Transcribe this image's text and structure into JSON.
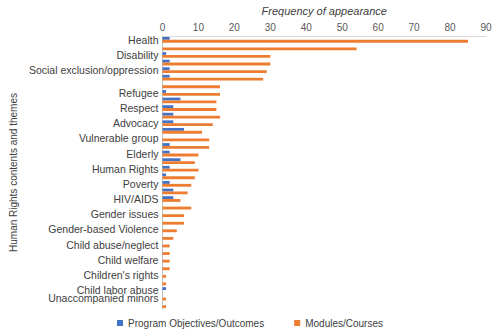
{
  "chart_data": {
    "type": "bar",
    "orientation": "horizontal",
    "x_label": "Frequency of appearance",
    "y_label": "Human Rights contents and themes",
    "categories": [
      "Health",
      null,
      "Disability",
      null,
      "Social exclusion/oppression",
      null,
      null,
      "Refugee",
      null,
      "Respect",
      null,
      "Advocacy",
      null,
      "Vulnerable group",
      null,
      "Elderly",
      null,
      "Human Rights",
      null,
      "Poverty",
      null,
      "HIV/AIDS",
      null,
      "Gender issues",
      null,
      "Gender-based Violence",
      null,
      "Child abuse/neglect",
      null,
      "Child welfare",
      null,
      "Children's rights",
      null,
      "Child labor abuse",
      "Unaccompanied minors",
      null
    ],
    "series": [
      {
        "name": "Program Objectives/Outcomes",
        "color": "#4472c4",
        "values": [
          2,
          0,
          1,
          2,
          2,
          2,
          0,
          1,
          5,
          3,
          3,
          3,
          6,
          0,
          2,
          2,
          5,
          2,
          1,
          2,
          3,
          3,
          0,
          0,
          0,
          0,
          0,
          0,
          0,
          0,
          0,
          0,
          0,
          1,
          0,
          0
        ]
      },
      {
        "name": "Modules/Courses",
        "color": "#ed7d31",
        "values": [
          85,
          54,
          30,
          30,
          29,
          28,
          16,
          16,
          15,
          15,
          16,
          14,
          11,
          13,
          13,
          10,
          9,
          10,
          9,
          8,
          7,
          5,
          8,
          6,
          6,
          4,
          3,
          2,
          2,
          2,
          2,
          1,
          1,
          0,
          1,
          1
        ]
      }
    ],
    "xlim": [
      0,
      90
    ],
    "xticks": [
      0,
      10,
      20,
      30,
      40,
      50,
      60,
      70,
      80,
      90
    ],
    "grid": false,
    "legend": "bottom"
  }
}
